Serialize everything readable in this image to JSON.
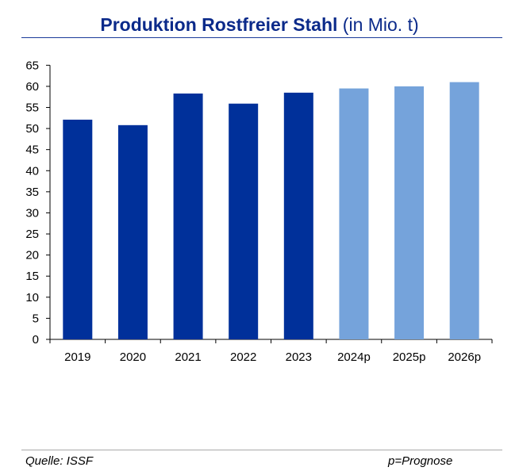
{
  "chart_data": {
    "type": "bar",
    "title": "Produktion Rostfreier Stahl",
    "title_unit": "(in Mio. t)",
    "categories": [
      "2019",
      "2020",
      "2021",
      "2022",
      "2023",
      "2024p",
      "2025p",
      "2026p"
    ],
    "values": [
      52.1,
      50.8,
      58.3,
      55.9,
      58.5,
      59.5,
      60.0,
      61.0
    ],
    "forecast": [
      false,
      false,
      false,
      false,
      false,
      true,
      true,
      true
    ],
    "ylim": [
      0,
      65
    ],
    "yticks": [
      0,
      5,
      10,
      15,
      20,
      25,
      30,
      35,
      40,
      45,
      50,
      55,
      60,
      65
    ],
    "grid": false,
    "colors": {
      "actual": "#00309a",
      "forecast": "#75a3db",
      "title": "#0b2a8a"
    }
  },
  "footer": {
    "source": "Quelle: ISSF",
    "note": "p=Prognose"
  }
}
